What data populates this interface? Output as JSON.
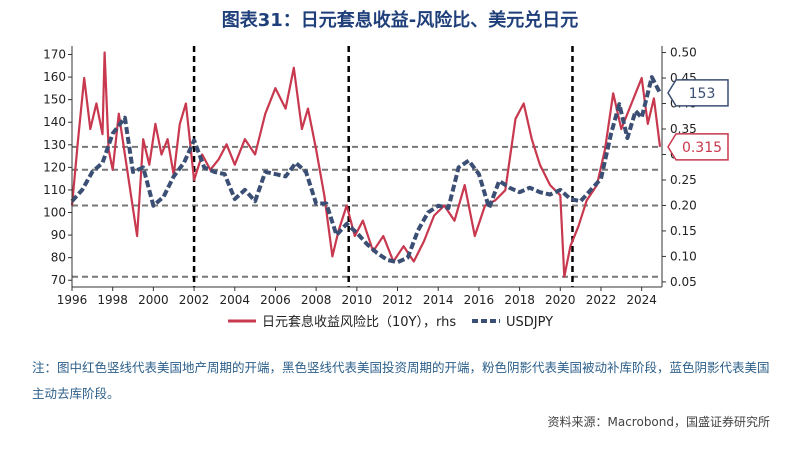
{
  "title": "图表31：日元套息收益-风险比、美元兑日元",
  "note": "注：图中红色竖线代表美国地产周期的开端，黑色竖线代表美国投资周期的开端，粉色阴影代表美国被动补库阶段，蓝色阴影代表美国主动去库阶段。",
  "source": "资料来源：Macrobond，国盛证券研究所",
  "colors": {
    "carry": "#c8384e",
    "usdjpy": "#3b4f74",
    "callout_blue": "#3b4f74",
    "callout_red": "#c8384e"
  },
  "chart_data": {
    "type": "line",
    "title": "",
    "xlabel": "",
    "ylabel": "",
    "xlim": [
      1996,
      2025
    ],
    "ylim": [
      67,
      172
    ],
    "y2lim": [
      0.04,
      0.505
    ],
    "x_ticks": [
      1996,
      1998,
      2000,
      2002,
      2004,
      2006,
      2008,
      2010,
      2012,
      2014,
      2016,
      2018,
      2020,
      2022,
      2024
    ],
    "y_ticks": [
      70,
      80,
      90,
      100,
      110,
      120,
      130,
      140,
      150,
      160,
      170
    ],
    "y2_ticks": [
      "0.05",
      "0.10",
      "0.15",
      "0.20",
      "0.25",
      "0.30",
      "0.35",
      "0.40",
      "0.45",
      "0.50"
    ],
    "vlines": [
      2002.0,
      2009.6,
      2020.6
    ],
    "hlines_rhs": [
      0.315,
      0.27,
      0.2,
      0.06
    ],
    "legend_position": "bottom",
    "callouts": [
      {
        "label": "153",
        "axis": "left",
        "y": 153,
        "color": "#3b4f74"
      },
      {
        "label": "0.315",
        "axis": "right",
        "y": 0.315,
        "color": "#c8384e"
      }
    ],
    "series": [
      {
        "name": "日元套息收益风险比（10Y），rhs",
        "axis": "right",
        "x": [
          1996.0,
          1996.3,
          1996.6,
          1996.9,
          1997.2,
          1997.5,
          1997.6,
          1997.8,
          1998.0,
          1998.3,
          1998.6,
          1998.9,
          1999.2,
          1999.5,
          1999.8,
          2000.1,
          2000.4,
          2000.7,
          2001.0,
          2001.3,
          2001.6,
          2002.0,
          2002.4,
          2002.8,
          2003.2,
          2003.6,
          2004.0,
          2004.5,
          2005.0,
          2005.5,
          2006.0,
          2006.5,
          2006.9,
          2007.3,
          2007.6,
          2008.0,
          2008.4,
          2008.8,
          2009.1,
          2009.5,
          2009.9,
          2010.3,
          2010.8,
          2011.3,
          2011.8,
          2012.3,
          2012.8,
          2013.3,
          2013.8,
          2014.3,
          2014.8,
          2015.3,
          2015.8,
          2016.3,
          2016.8,
          2017.3,
          2017.8,
          2018.2,
          2018.6,
          2019.0,
          2019.5,
          2020.0,
          2020.2,
          2020.5,
          2020.9,
          2021.3,
          2021.8,
          2022.2,
          2022.6,
          2023.0,
          2023.5,
          2024.0,
          2024.3,
          2024.6,
          2024.9
        ],
        "y": [
          0.2,
          0.33,
          0.45,
          0.35,
          0.4,
          0.34,
          0.5,
          0.31,
          0.27,
          0.38,
          0.3,
          0.22,
          0.14,
          0.33,
          0.28,
          0.36,
          0.3,
          0.33,
          0.26,
          0.36,
          0.4,
          0.25,
          0.3,
          0.27,
          0.29,
          0.32,
          0.28,
          0.33,
          0.3,
          0.38,
          0.43,
          0.39,
          0.47,
          0.35,
          0.39,
          0.31,
          0.22,
          0.1,
          0.15,
          0.2,
          0.14,
          0.17,
          0.11,
          0.14,
          0.09,
          0.12,
          0.09,
          0.13,
          0.18,
          0.2,
          0.17,
          0.24,
          0.14,
          0.2,
          0.21,
          0.23,
          0.37,
          0.4,
          0.33,
          0.28,
          0.24,
          0.22,
          0.06,
          0.12,
          0.16,
          0.21,
          0.24,
          0.31,
          0.42,
          0.35,
          0.4,
          0.45,
          0.36,
          0.41,
          0.315
        ]
      },
      {
        "name": "USDJPY",
        "axis": "left",
        "x": [
          1996.0,
          1996.5,
          1997.0,
          1997.5,
          1998.0,
          1998.6,
          1999.0,
          1999.5,
          2000.0,
          2000.5,
          2001.0,
          2001.5,
          2002.0,
          2002.5,
          2003.0,
          2003.5,
          2004.0,
          2004.5,
          2005.0,
          2005.5,
          2006.0,
          2006.5,
          2007.0,
          2007.5,
          2008.0,
          2008.5,
          2009.0,
          2009.5,
          2010.0,
          2010.5,
          2011.0,
          2011.5,
          2012.0,
          2012.5,
          2013.0,
          2013.5,
          2014.0,
          2014.5,
          2015.0,
          2015.5,
          2016.0,
          2016.5,
          2017.0,
          2017.5,
          2018.0,
          2018.5,
          2019.0,
          2019.5,
          2020.0,
          2020.5,
          2021.0,
          2021.5,
          2022.0,
          2022.5,
          2022.9,
          2023.3,
          2023.7,
          2024.0,
          2024.5,
          2024.9
        ],
        "y": [
          105,
          110,
          118,
          122,
          135,
          142,
          118,
          120,
          103,
          107,
          116,
          122,
          132,
          120,
          118,
          117,
          106,
          110,
          105,
          118,
          117,
          116,
          122,
          118,
          104,
          104,
          90,
          95,
          91,
          86,
          82,
          79,
          78,
          80,
          92,
          100,
          103,
          102,
          120,
          123,
          117,
          102,
          114,
          111,
          109,
          111,
          109,
          108,
          110,
          106,
          105,
          110,
          115,
          135,
          148,
          133,
          145,
          142,
          160,
          153
        ]
      }
    ]
  }
}
